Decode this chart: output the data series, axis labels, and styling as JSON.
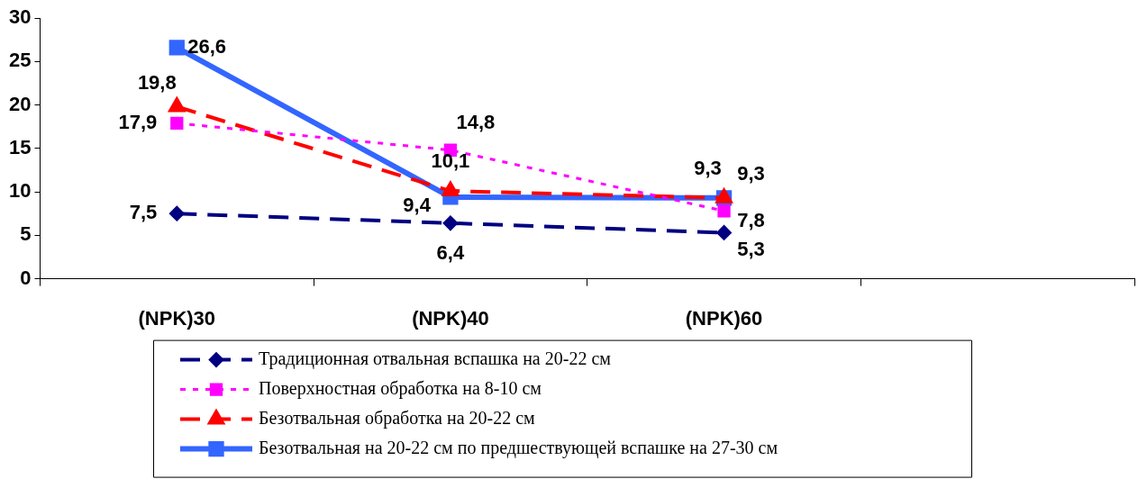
{
  "chart_data": {
    "type": "line",
    "categories": [
      "(NPK)30",
      "(NPK)40",
      "(NPK)60",
      null
    ],
    "ylim": [
      0,
      30
    ],
    "yticks": [
      0,
      5,
      10,
      15,
      20,
      25,
      30
    ],
    "grid": false,
    "legend": "bottom",
    "series": [
      {
        "name": "Традиционная отвальная вспашка на 20-22 см",
        "color": "#000080",
        "values": [
          7.5,
          6.4,
          5.3,
          null
        ],
        "value_labels": [
          "7,5",
          "6,4",
          "5,3",
          null
        ],
        "marker": "diamond",
        "line_style": "dashed"
      },
      {
        "name": "Поверхностная обработка на 8-10 см",
        "color": "#ff00ff",
        "values": [
          17.9,
          14.8,
          7.8,
          null
        ],
        "value_labels": [
          "17,9",
          "14,8",
          "7,8",
          null
        ],
        "marker": "square",
        "line_style": "dotted"
      },
      {
        "name": "Безотвальная обработка на 20-22 см",
        "color": "#ff0000",
        "values": [
          19.8,
          10.1,
          9.3,
          null
        ],
        "value_labels": [
          "19,8",
          "10,1",
          "9,3",
          null
        ],
        "marker": "triangle",
        "line_style": "dashed"
      },
      {
        "name": "Безотвальная на 20-22 см по предшествующей вспашке на 27-30 см",
        "color": "#3366ff",
        "values": [
          26.6,
          9.4,
          9.3,
          null
        ],
        "value_labels": [
          "26,6",
          "9,4",
          "9,3",
          null
        ],
        "marker": "square",
        "line_style": "solid"
      }
    ]
  }
}
